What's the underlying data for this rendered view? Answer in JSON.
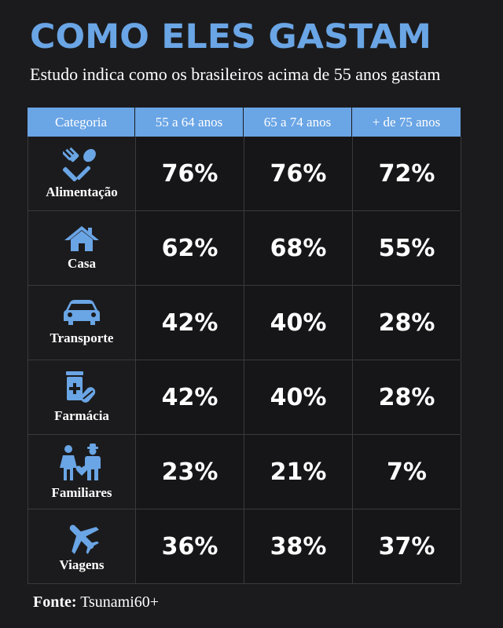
{
  "title": "COMO ELES GASTAM",
  "subtitle": "Estudo indica como os brasileiros acima de 55 anos gastam",
  "source": {
    "label": "Fonte:",
    "value": "Tsunami60+"
  },
  "colors": {
    "accent": "#6aa5e5",
    "background": "#1b1b1d",
    "text": "#ffffff"
  },
  "chart_data": {
    "type": "table",
    "columns": [
      "Categoria",
      "55 a 64 anos",
      "65 a 74 anos",
      "+ de 75 anos"
    ],
    "rows": [
      {
        "category": "Alimentação",
        "icon": "fork-spoon-icon",
        "values": [
          "76%",
          "76%",
          "72%"
        ]
      },
      {
        "category": "Casa",
        "icon": "house-icon",
        "values": [
          "62%",
          "68%",
          "55%"
        ]
      },
      {
        "category": "Transporte",
        "icon": "car-icon",
        "values": [
          "42%",
          "40%",
          "28%"
        ]
      },
      {
        "category": "Farmácia",
        "icon": "medicine-icon",
        "values": [
          "42%",
          "40%",
          "28%"
        ]
      },
      {
        "category": "Familiares",
        "icon": "family-icon",
        "values": [
          "23%",
          "21%",
          "7%"
        ]
      },
      {
        "category": "Viagens",
        "icon": "airplane-icon",
        "values": [
          "36%",
          "38%",
          "37%"
        ]
      }
    ]
  }
}
